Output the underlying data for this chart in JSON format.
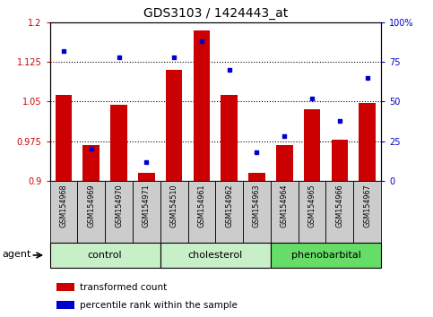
{
  "title": "GDS3103 / 1424443_at",
  "samples": [
    "GSM154968",
    "GSM154969",
    "GSM154970",
    "GSM154971",
    "GSM154510",
    "GSM154961",
    "GSM154962",
    "GSM154963",
    "GSM154964",
    "GSM154965",
    "GSM154966",
    "GSM154967"
  ],
  "red_values": [
    1.063,
    0.967,
    1.043,
    0.915,
    1.11,
    1.185,
    1.063,
    0.915,
    0.967,
    1.035,
    0.978,
    1.047
  ],
  "blue_values": [
    82,
    20,
    78,
    12,
    78,
    88,
    70,
    18,
    28,
    52,
    38,
    65
  ],
  "group_ranges": [
    [
      0,
      3,
      "control",
      "#c8f0c8"
    ],
    [
      4,
      7,
      "cholesterol",
      "#c8f0c8"
    ],
    [
      8,
      11,
      "phenobarbital",
      "#66dd66"
    ]
  ],
  "ylim_left": [
    0.9,
    1.2
  ],
  "ylim_right": [
    0,
    100
  ],
  "yticks_left": [
    0.9,
    0.975,
    1.05,
    1.125,
    1.2
  ],
  "yticks_right": [
    0,
    25,
    50,
    75,
    100
  ],
  "ytick_labels_left": [
    "0.9",
    "0.975",
    "1.05",
    "1.125",
    "1.2"
  ],
  "ytick_labels_right": [
    "0",
    "25",
    "50",
    "75",
    "100%"
  ],
  "bar_color": "#cc0000",
  "dot_color": "#0000cc",
  "baseline": 0.9,
  "agent_label": "agent",
  "legend_red": "transformed count",
  "legend_blue": "percentile rank within the sample",
  "sample_bg_color": "#cccccc",
  "bar_width": 0.6,
  "xlim": [
    -0.5,
    11.5
  ]
}
